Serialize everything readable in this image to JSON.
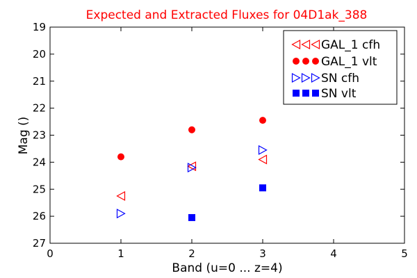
{
  "chart_data": {
    "type": "scatter",
    "title": "Expected and Extracted Fluxes for 04D1ak_388",
    "title_color": "#ff0000",
    "xlabel": "Band (u=0 ... z=4)",
    "ylabel": "Mag ()",
    "xlim": [
      0,
      5
    ],
    "ylim": [
      27,
      19
    ],
    "y_inverted": true,
    "x_ticks": [
      "0",
      "1",
      "2",
      "3",
      "4",
      "5"
    ],
    "y_ticks": [
      "19",
      "20",
      "21",
      "22",
      "23",
      "24",
      "25",
      "26",
      "27"
    ],
    "grid": false,
    "legend_position": "top-right",
    "series": [
      {
        "name": "GAL_1 cfh",
        "marker": "triangle-left",
        "filled": false,
        "color": "#ff0000",
        "points": [
          {
            "x": 1,
            "y": 25.25
          },
          {
            "x": 2,
            "y": 24.15
          },
          {
            "x": 3,
            "y": 23.9
          }
        ]
      },
      {
        "name": "GAL_1 vlt",
        "marker": "circle",
        "filled": true,
        "color": "#ff0000",
        "points": [
          {
            "x": 1,
            "y": 23.8
          },
          {
            "x": 2,
            "y": 22.8
          },
          {
            "x": 3,
            "y": 22.45
          }
        ]
      },
      {
        "name": "SN cfh",
        "marker": "triangle-right",
        "filled": false,
        "color": "#0000ff",
        "points": [
          {
            "x": 1,
            "y": 25.9
          },
          {
            "x": 2,
            "y": 24.2
          },
          {
            "x": 3,
            "y": 23.55
          }
        ]
      },
      {
        "name": "SN vlt",
        "marker": "square",
        "filled": true,
        "color": "#0000ff",
        "points": [
          {
            "x": 2,
            "y": 26.05
          },
          {
            "x": 3,
            "y": 24.95
          }
        ]
      }
    ]
  }
}
